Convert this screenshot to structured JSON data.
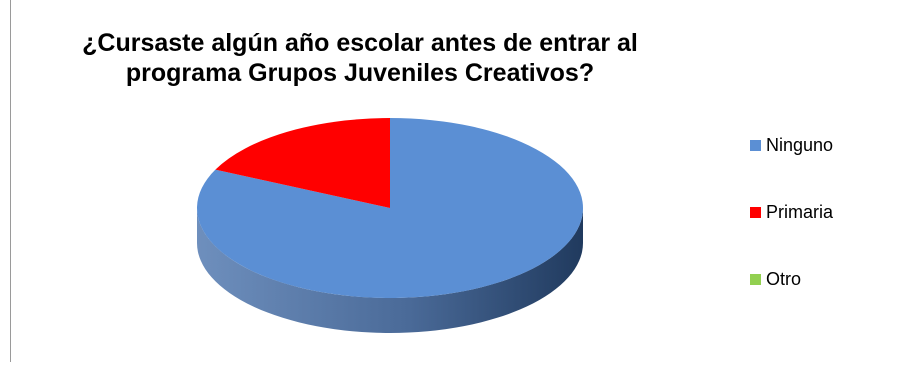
{
  "chart_data": {
    "type": "pie",
    "style": "3d",
    "title_lines": [
      "¿Cursaste algún año escolar antes de entrar al",
      "programa Grupos Juveniles Creativos?"
    ],
    "categories": [
      "Ninguno",
      "Primaria",
      "Otro"
    ],
    "values": [
      82,
      18,
      0
    ],
    "colors": [
      "#5b8fd4",
      "#ff0000",
      "#92d050"
    ],
    "legend_position": "right"
  }
}
